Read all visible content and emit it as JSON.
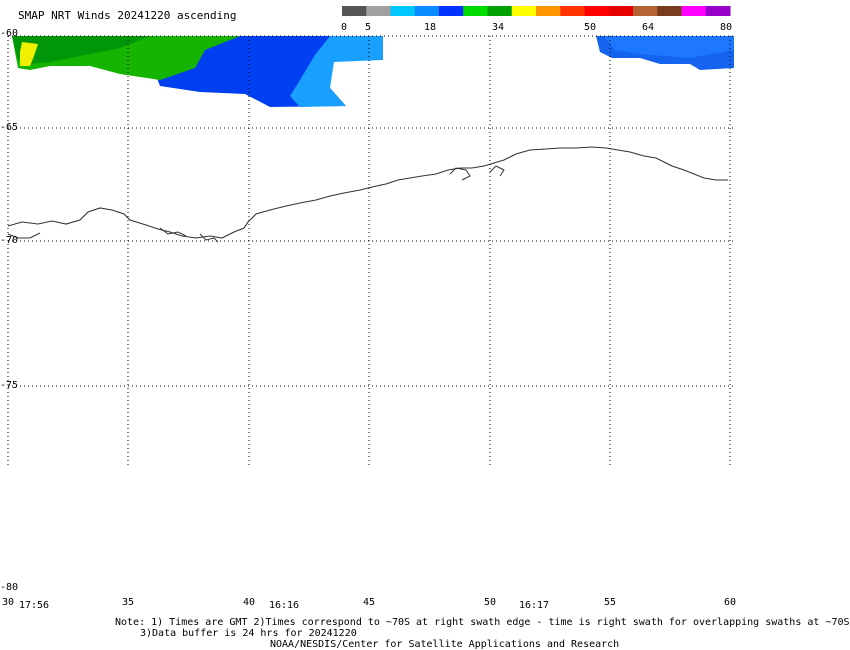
{
  "title": "SMAP NRT Winds 20241220 ascending",
  "colorbar": {
    "ticks": [
      "0",
      "5",
      "18",
      "34",
      "50",
      "64",
      "80"
    ],
    "segments": [
      "#555555",
      "#a0a0a0",
      "#00c8ff",
      "#0a8cff",
      "#0032ff",
      "#00dc00",
      "#00a000",
      "#ffff00",
      "#ff9600",
      "#ff3200",
      "#ff0000",
      "#e60000",
      "#b46432",
      "#783c1e",
      "#ff00ff",
      "#9600c8"
    ]
  },
  "map": {
    "lat_labels": [
      "-60",
      "-65",
      "-70",
      "-75",
      "-80"
    ],
    "lon_labels": [
      "30",
      "35",
      "40",
      "45",
      "50",
      "55",
      "60"
    ],
    "time_labels": [
      "17:56",
      "16:16",
      "16:17"
    ]
  },
  "footer": {
    "line1": "Note: 1) Times are GMT 2)Times correspond to ~70S at right swath edge - time is right swath for overlapping swaths at ~70S",
    "line2": "3)Data buffer is 24 hrs for 20241220",
    "line3": "NOAA/NESDIS/Center for Satellite Applications and Research"
  }
}
